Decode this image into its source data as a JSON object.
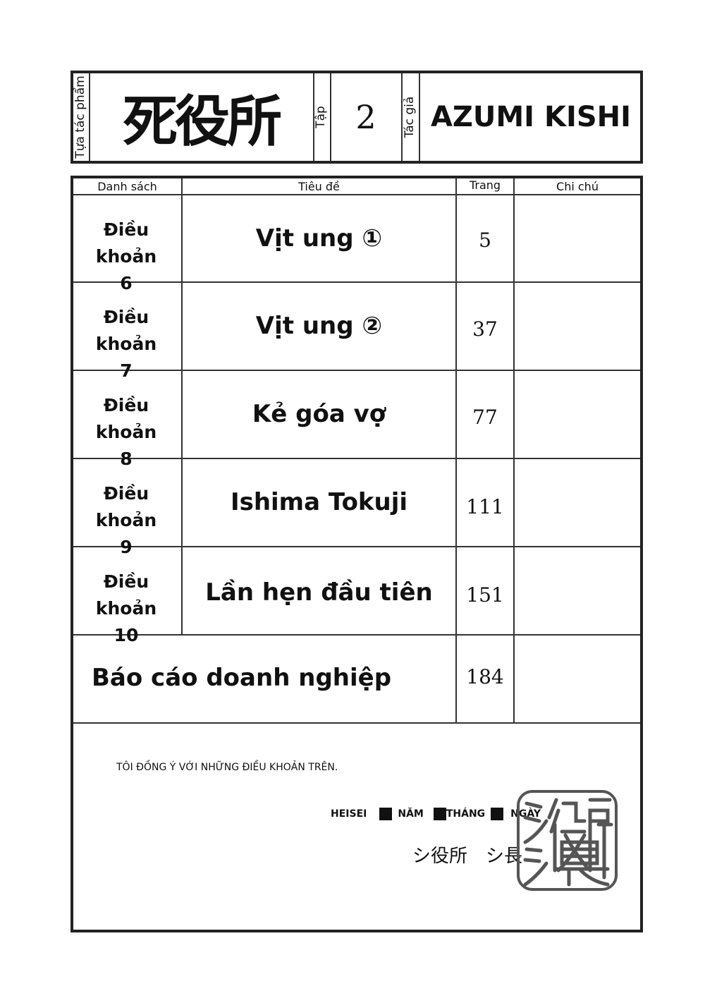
{
  "header": {
    "work_title_label": "Tựa tác phẩm",
    "work_title": "死役所",
    "volume_label": "Tập",
    "volume": "2",
    "author_label": "Tác giả",
    "author": "AZUMI KISHI"
  },
  "table": {
    "columns": [
      "Danh sách",
      "Tiêu đề",
      "Trang",
      "Chi chú"
    ],
    "rows": [
      {
        "category": "Điều khoản",
        "number": "6",
        "title": "Vịt ung ①",
        "page": "5"
      },
      {
        "category": "Điều khoản",
        "number": "7",
        "title": "Vịt ung ②",
        "page": "37"
      },
      {
        "category": "Điều khoản",
        "number": "8",
        "title": "Kẻ góa vợ",
        "page": "77"
      },
      {
        "category": "Điều khoản",
        "number": "9",
        "title": "Ishima Tokuji",
        "page": "111"
      },
      {
        "category": "Điều khoản",
        "number": "10",
        "title": "Lần hẹn đầu tiên",
        "page": "151"
      }
    ],
    "final_row": {
      "title": "Báo cáo doanh nghiệp",
      "page": "184"
    }
  },
  "footer": {
    "agreement": "TÔI ĐỒNG Ý VỚI NHỮNG ĐIỀU KHOẢN TRÊN.",
    "date_era": "HEISEI",
    "date_year": "NĂM",
    "date_month": "THÁNG",
    "date_day": "NGÀY",
    "signature": "シ役所　シ長",
    "stamp_text": "シ役所シ長"
  }
}
